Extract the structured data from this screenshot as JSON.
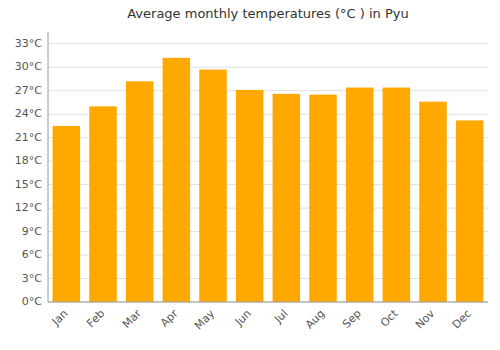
{
  "chart_data": {
    "type": "bar",
    "title": "Average monthly temperatures (°C ) in Pyu",
    "categories": [
      "Jan",
      "Feb",
      "Mar",
      "Apr",
      "May",
      "Jun",
      "Jul",
      "Aug",
      "Sep",
      "Oct",
      "Nov",
      "Dec"
    ],
    "values": [
      22.5,
      25.0,
      28.2,
      31.2,
      29.7,
      27.1,
      26.6,
      26.5,
      27.4,
      27.4,
      25.6,
      23.2
    ],
    "color": "#FFA800",
    "ylim": [
      0,
      34.5
    ],
    "yticks": [
      {
        "value": 0,
        "label": "0°C"
      },
      {
        "value": 3,
        "label": "3°C"
      },
      {
        "value": 6,
        "label": "6°C"
      },
      {
        "value": 9,
        "label": "9°C"
      },
      {
        "value": 12,
        "label": "12°C"
      },
      {
        "value": 15,
        "label": "15°C"
      },
      {
        "value": 18,
        "label": "18°C"
      },
      {
        "value": 21,
        "label": "21°C"
      },
      {
        "value": 24,
        "label": "24°C"
      },
      {
        "value": 27,
        "label": "27°C"
      },
      {
        "value": 30,
        "label": "30°C"
      },
      {
        "value": 33,
        "label": "33°C"
      }
    ],
    "grid": true
  }
}
